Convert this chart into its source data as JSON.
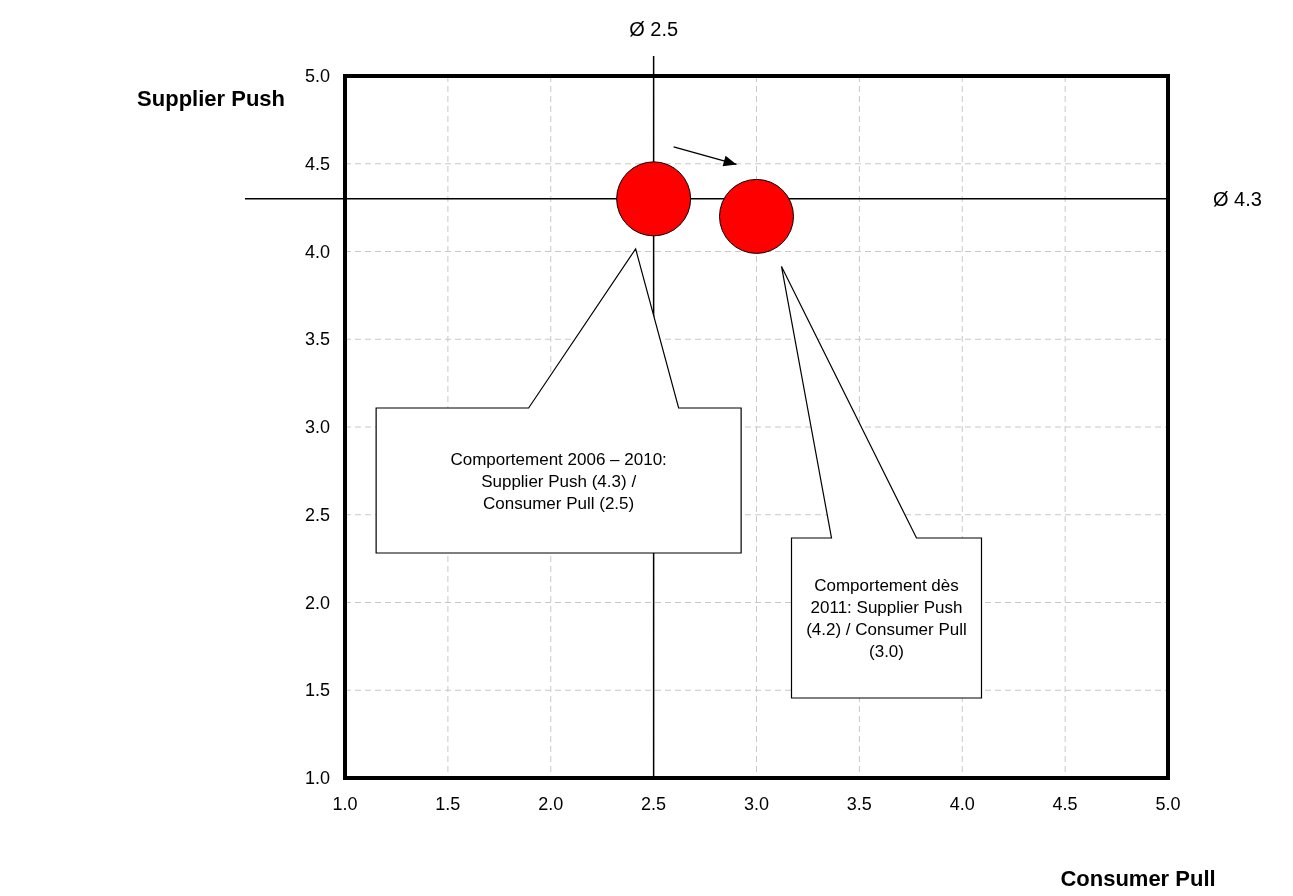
{
  "chart_data": {
    "type": "scatter",
    "xlabel": "Consumer Pull",
    "ylabel": "Supplier Push",
    "x": [
      2.5,
      3.0
    ],
    "values": [
      4.3,
      4.2
    ],
    "color": "#ff0000",
    "marker": "circle",
    "xlim": [
      1,
      5
    ],
    "ylim": [
      1,
      5
    ],
    "xticks": [
      {
        "value": 1,
        "label": "1.0"
      },
      1.5,
      {
        "value": 2,
        "label": "2.0"
      },
      2.5,
      {
        "value": 3,
        "label": "3.0"
      },
      3.5,
      {
        "value": 4,
        "label": "4.0"
      },
      4.5,
      {
        "value": 5,
        "label": "5.0"
      }
    ],
    "yticks": [
      {
        "value": 1,
        "label": "1.0"
      },
      1.5,
      {
        "value": 2,
        "label": "2.0"
      },
      2.5,
      {
        "value": 3,
        "label": "3.0"
      },
      3.5,
      {
        "value": 4,
        "label": "4.0"
      },
      4.5,
      {
        "value": 5,
        "label": "5.0"
      }
    ],
    "grid": true,
    "ref_lines": [
      {
        "axis": "x",
        "value": 2.5,
        "label": "Ø 2.5",
        "color": "#000000"
      },
      {
        "axis": "y",
        "value": 4.3,
        "label": "Ø 4.3",
        "color": "#000000"
      }
    ],
    "annotations": [
      "Comportement 2006 – 2010: Supplier Push (4.3) / Consumer Pull (2.5)",
      "Comportement dès 2011: Supplier Push (4.2) / Consumer Pull (3.0)"
    ]
  }
}
